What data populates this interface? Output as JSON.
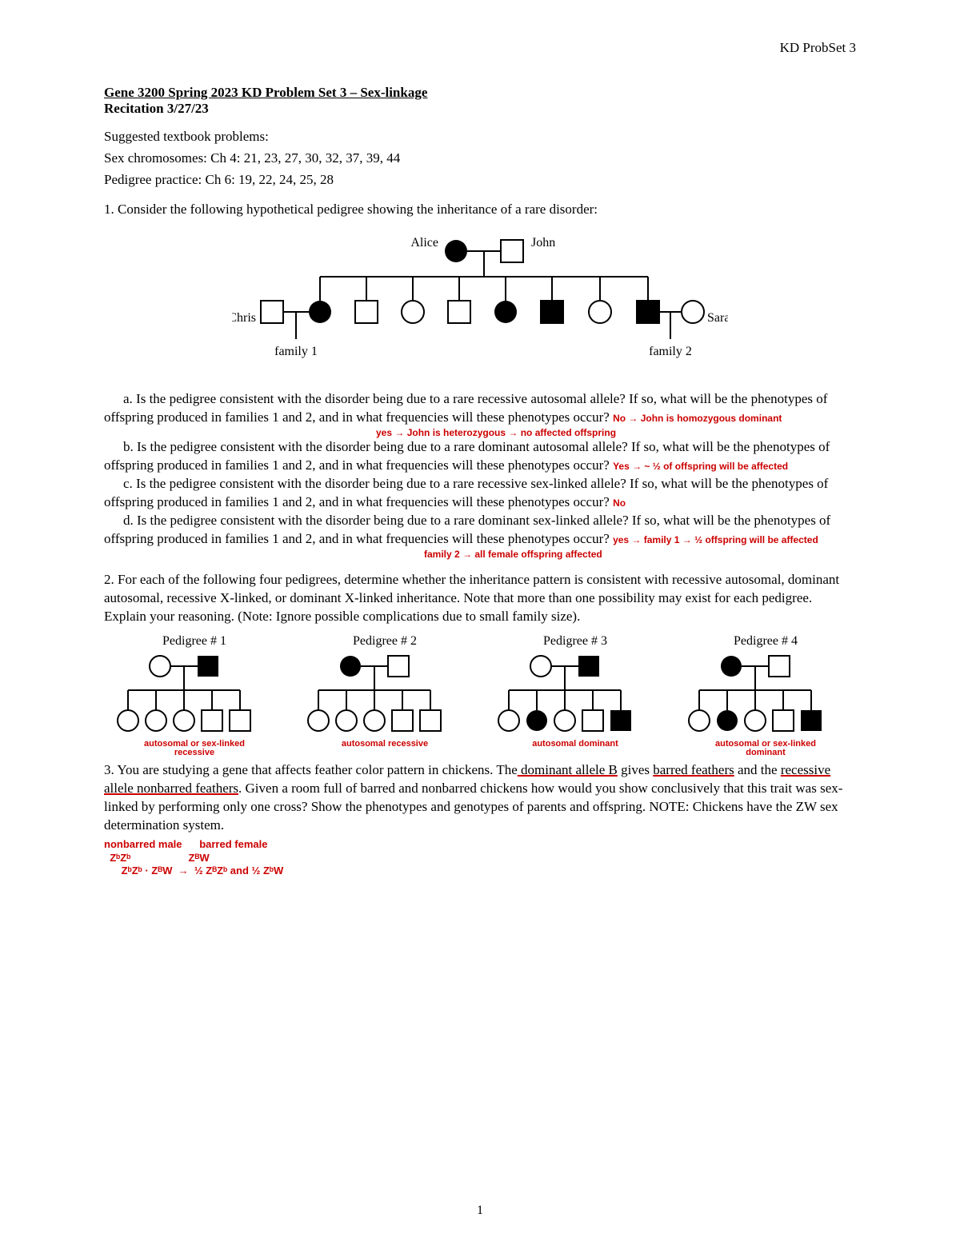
{
  "header": {
    "right": "KD ProbSet 3"
  },
  "title": {
    "line1": "Gene 3200 Spring 2023 KD Problem Set 3 – Sex-linkage",
    "line2": "Recitation 3/27/23"
  },
  "suggested": {
    "intro": "Suggested textbook problems:",
    "line1": "Sex chromosomes: Ch 4: 21, 23, 27, 30, 32, 37, 39, 44",
    "line2": "Pedigree practice: Ch 6: 19, 22, 24, 25, 28"
  },
  "q1": {
    "prompt": "1. Consider the following hypothetical pedigree showing the inheritance of a rare disorder:",
    "labels": {
      "alice": "Alice",
      "john": "John",
      "chris": "Chris",
      "sarah": "Sarah",
      "fam1": "family 1",
      "fam2": "family 2"
    },
    "a": "a.  Is the pedigree consistent with the disorder being due to a rare recessive autosomal allele? If so, what will be the phenotypes of offspring produced in families 1 and 2, and in what frequencies will these phenotypes occur?",
    "a_ann1": "No → John is homozygous dominant",
    "a_ann2": "yes → John is heterozygous → no affected offspring",
    "b": "b. Is the pedigree consistent with the disorder being due to a rare dominant autosomal allele? If so, what will be the phenotypes of offspring produced in families 1 and 2, and in what frequencies will these phenotypes occur?",
    "b_ann": "Yes → ~ ½ of offspring will be affected",
    "c": "c. Is the pedigree consistent with the disorder being due to a rare recessive sex-linked allele? If so, what will be the phenotypes of offspring produced in families 1 and 2, and in what frequencies will these phenotypes occur?",
    "c_ann": "No",
    "d": "d. Is the pedigree consistent with the disorder being due to a rare dominant sex-linked allele? If so, what will be the phenotypes of offspring produced in families 1 and 2, and in what frequencies will these phenotypes occur?",
    "d_ann1": "yes → family 1 → ½ offspring will be affected",
    "d_ann2": "family 2 → all female offspring affected"
  },
  "q2": {
    "prompt": "2. For each of the following four pedigrees, determine whether the inheritance pattern is consistent with recessive autosomal, dominant autosomal, recessive X-linked, or dominant X-linked inheritance.  Note that more than one possibility may exist for each pedigree. Explain your reasoning. (Note: Ignore possible complications due to small family size).",
    "captions": {
      "p1": "Pedigree # 1",
      "p2": "Pedigree # 2",
      "p3": "Pedigree # 3",
      "p4": "Pedigree # 4"
    },
    "ann": {
      "p1": "autosomal or sex-linked\nrecessive",
      "p2": "autosomal recessive",
      "p3": "autosomal dominant",
      "p4": "autosomal or sex-linked\ndominant"
    }
  },
  "q3": {
    "text_pre": "3.  You are studying a gene that affects feather color pattern in chickens.  The",
    "u1": " dominant allele B",
    "text_mid1": " gives ",
    "u2": "barred feathers",
    "text_mid2": " and the ",
    "u3": "recessive allele nonbarred feathers",
    "text_rest": ".  Given a room full of barred and nonbarred chickens how would you show conclusively that this trait was sex-linked by performing only one cross?  Show the phenotypes and genotypes of parents and offspring. NOTE: Chickens have the ZW sex determination system.",
    "ann1": "nonbarred male      barred female",
    "ann2": "  ZᵇZᵇ                    ZᴮW",
    "ann3": "      ZᵇZᵇ · ZᴮW  →  ½ ZᴮZᵇ and ½ ZᵇW"
  },
  "pagenum": "1",
  "colors": {
    "red": "#cc0000",
    "black": "#000000",
    "white": "#ffffff"
  }
}
